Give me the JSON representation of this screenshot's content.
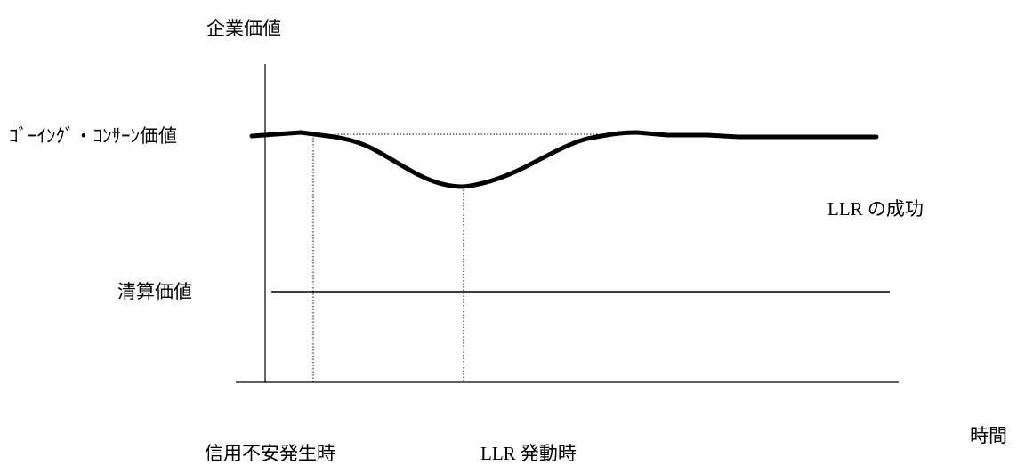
{
  "labels": {
    "y_axis": "企業価値",
    "going_concern": "ｺﾞｰｲﾝｸﾞ・ｺﾝｻｰﾝ価値",
    "liquidation": "清算価値",
    "success": "LLR の成功",
    "x_axis": "時間",
    "credit_anxiety": "信用不安発生時",
    "llr_trigger": "LLR 発動時"
  },
  "colors": {
    "ink": "#000000"
  }
}
